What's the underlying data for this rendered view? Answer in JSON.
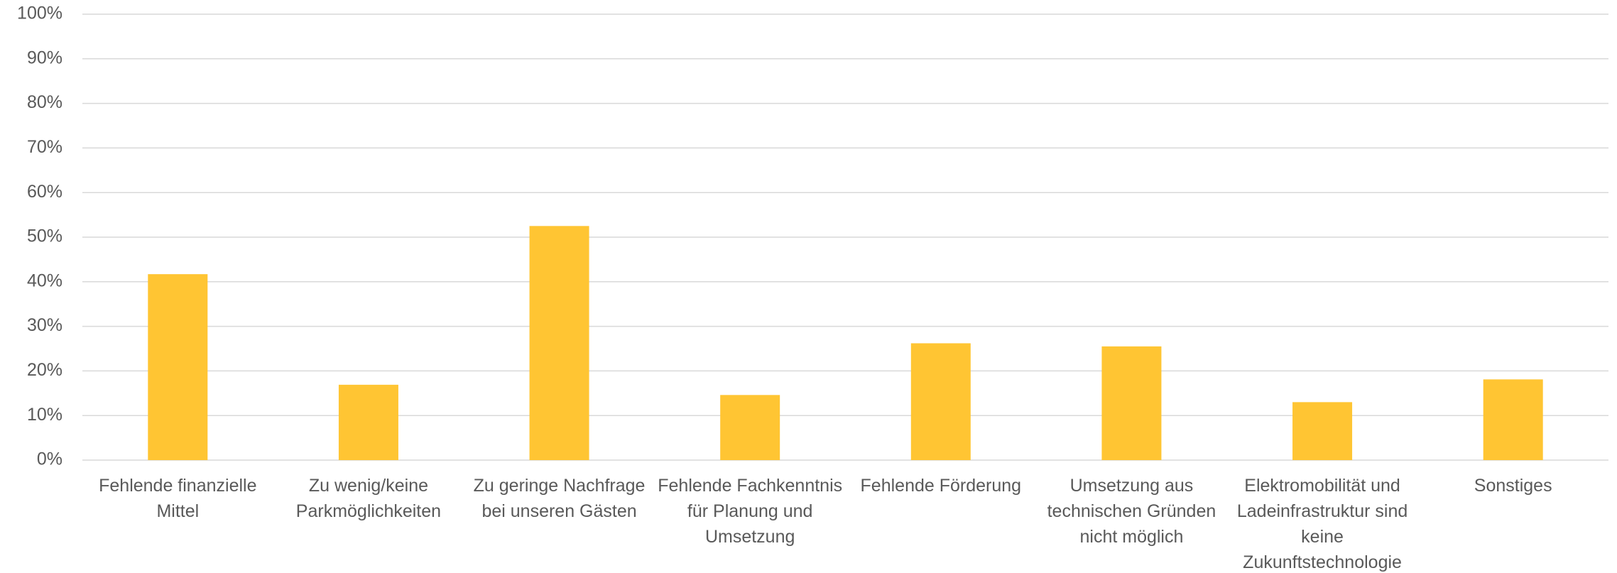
{
  "chart_data": {
    "type": "bar",
    "categories": [
      "Fehlende finanzielle Mittel",
      "Zu wenig/keine Parkmöglichkeiten",
      "Zu geringe Nachfrage bei unseren Gästen",
      "Fehlende Fachkenntnis für Planung und Umsetzung",
      "Fehlende Förderung",
      "Umsetzung aus technischen Gründen nicht möglich",
      "Elektromobilität und Ladeinfrastruktur sind keine Zukunftstechnologie",
      "Sonstiges"
    ],
    "values": [
      41.7,
      16.9,
      52.5,
      14.6,
      26.2,
      25.5,
      13,
      18.1
    ],
    "color": "#FFC533",
    "ylim": [
      0,
      100
    ],
    "yticks": [
      {
        "value": 0,
        "label": "0%"
      },
      {
        "value": 10,
        "label": "10%"
      },
      {
        "value": 20,
        "label": "20%"
      },
      {
        "value": 30,
        "label": "30%"
      },
      {
        "value": 40,
        "label": "40%"
      },
      {
        "value": 50,
        "label": "50%"
      },
      {
        "value": 60,
        "label": "60%"
      },
      {
        "value": 70,
        "label": "70%"
      },
      {
        "value": 80,
        "label": "80%"
      },
      {
        "value": 90,
        "label": "90%"
      },
      {
        "value": 100,
        "label": "100%"
      }
    ],
    "grid": true
  }
}
